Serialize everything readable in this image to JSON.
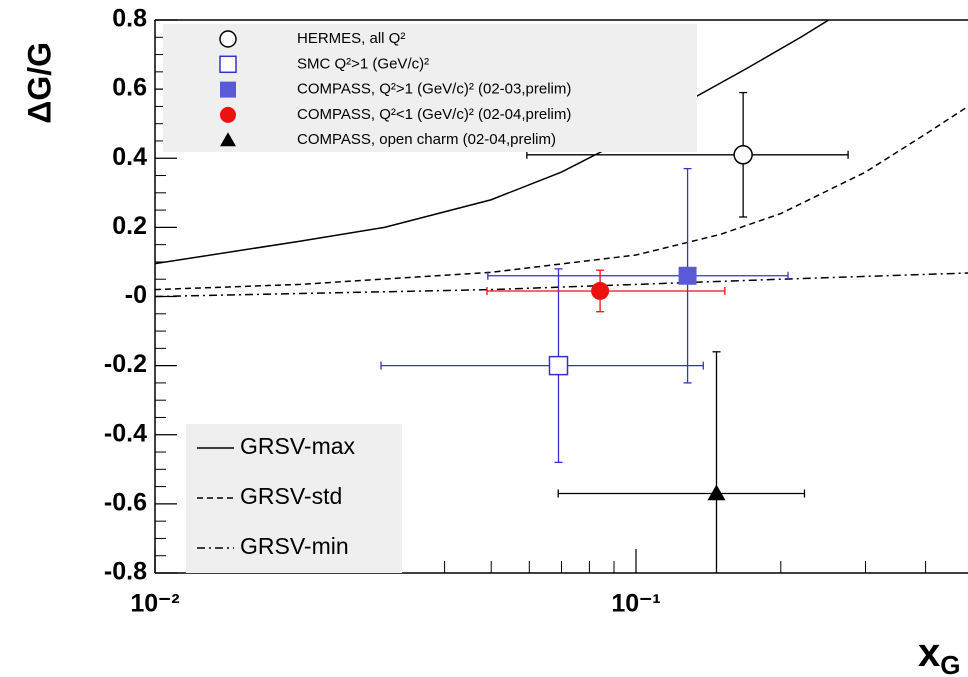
{
  "chart_data": {
    "type": "scatter",
    "ylabel": "ΔG/G",
    "xlabel": {
      "text": "x",
      "sub": "G"
    },
    "log_x": true,
    "xlim": [
      0.01,
      0.49
    ],
    "ylim": [
      -0.8,
      0.8
    ],
    "xticks": [
      {
        "value": 0.01,
        "label": "10⁻²"
      },
      {
        "value": 0.1,
        "label": "10⁻¹"
      }
    ],
    "yticks": [
      -0.8,
      -0.6,
      -0.4,
      -0.2,
      {
        "value": 0,
        "label": "-0"
      },
      0.2,
      0.4,
      0.6,
      0.8
    ],
    "series": [
      {
        "name": "HERMES, all Q²",
        "marker": "open-circle",
        "color": "#000000",
        "x": [
          0.167
        ],
        "y": [
          0.41
        ],
        "xmin": [
          0.0593
        ],
        "xmax": [
          0.276
        ],
        "yerr": [
          0.18
        ]
      },
      {
        "name": "SMC Q²>1 (GeV/c)²",
        "marker": "open-square",
        "color": "#3333cc",
        "x": [
          0.069
        ],
        "y": [
          -0.2
        ],
        "xmin": [
          0.0295
        ],
        "xmax": [
          0.138
        ],
        "yerr": [
          0.28
        ]
      },
      {
        "name": "COMPASS, Q²>1 (GeV/c)² (02-03,prelim)",
        "marker": "filled-square",
        "color": "#5a5ad8",
        "errcolor": "#3333cc",
        "x": [
          0.128
        ],
        "y": [
          0.06
        ],
        "xmin": [
          0.0492
        ],
        "xmax": [
          0.207
        ],
        "yerr": [
          0.31
        ]
      },
      {
        "name": "COMPASS, Q²<1 (GeV/c)² (02-04,prelim)",
        "marker": "filled-circle",
        "color": "#ee1111",
        "x": [
          0.0842
        ],
        "y": [
          0.016
        ],
        "xmin": [
          0.049
        ],
        "xmax": [
          0.153
        ],
        "yerr": [
          0.06
        ]
      },
      {
        "name": "COMPASS, open charm (02-04,prelim)",
        "marker": "triangle",
        "color": "#000000",
        "x": [
          0.147
        ],
        "y": [
          -0.57
        ],
        "xmin": [
          0.0689
        ],
        "xmax": [
          0.224
        ],
        "yerr": [
          0.41
        ]
      }
    ],
    "curves": [
      {
        "name": "GRSV-max",
        "dash": "solid",
        "x": [
          0.01,
          0.02,
          0.03,
          0.05,
          0.07,
          0.1,
          0.13,
          0.17,
          0.22,
          0.28
        ],
        "y": [
          0.095,
          0.16,
          0.2,
          0.28,
          0.36,
          0.47,
          0.57,
          0.66,
          0.75,
          0.84
        ]
      },
      {
        "name": "GRSV-std",
        "dash": "dashed",
        "x": [
          0.01,
          0.02,
          0.05,
          0.1,
          0.15,
          0.2,
          0.3,
          0.4,
          0.49
        ],
        "y": [
          0.02,
          0.035,
          0.07,
          0.12,
          0.18,
          0.24,
          0.36,
          0.47,
          0.55
        ]
      },
      {
        "name": "GRSV-min",
        "dash": "dashdot",
        "x": [
          0.01,
          0.05,
          0.1,
          0.2,
          0.49
        ],
        "y": [
          0.0,
          0.02,
          0.035,
          0.05,
          0.068
        ]
      }
    ]
  }
}
